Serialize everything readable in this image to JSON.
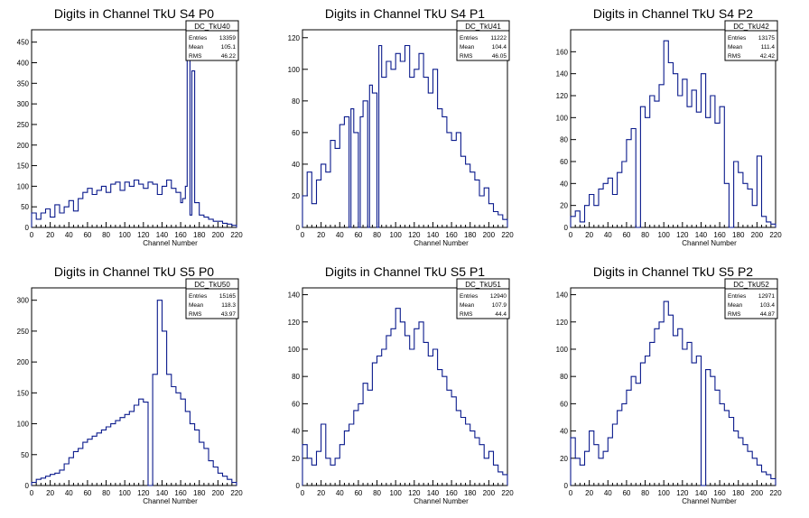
{
  "chart_data": [
    {
      "type": "histogram",
      "title": "Digits in Channel TkU S4 P0",
      "xlabel": "Channel Number",
      "ylabel": "",
      "xlim": [
        0,
        220
      ],
      "ylim": [
        0,
        480
      ],
      "yticks": [
        0,
        50,
        100,
        150,
        200,
        250,
        300,
        350,
        400,
        450
      ],
      "stats": {
        "name": "DC_TkU40",
        "entries": "13359",
        "mean": "105.1",
        "rms": "46.22"
      },
      "series": [
        {
          "name": "DC_TkU40",
          "x": [
            0,
            5,
            10,
            15,
            20,
            25,
            30,
            35,
            40,
            45,
            50,
            55,
            60,
            65,
            70,
            75,
            80,
            85,
            90,
            95,
            100,
            105,
            110,
            115,
            120,
            125,
            130,
            135,
            140,
            145,
            150,
            155,
            160,
            162,
            165,
            167,
            170,
            172,
            175,
            180,
            185,
            190,
            195,
            200,
            205,
            210,
            215,
            220
          ],
          "y": [
            35,
            20,
            35,
            45,
            25,
            55,
            35,
            50,
            65,
            40,
            70,
            85,
            95,
            80,
            90,
            100,
            85,
            105,
            110,
            90,
            110,
            100,
            115,
            105,
            95,
            110,
            105,
            80,
            100,
            115,
            95,
            85,
            60,
            70,
            100,
            460,
            30,
            380,
            60,
            30,
            25,
            20,
            15,
            15,
            10,
            8,
            5,
            3
          ]
        }
      ]
    },
    {
      "type": "histogram",
      "title": "Digits in Channel TkU S4 P1",
      "xlabel": "Channel Number",
      "ylabel": "",
      "xlim": [
        0,
        220
      ],
      "ylim": [
        0,
        125
      ],
      "yticks": [
        0,
        20,
        40,
        60,
        80,
        100,
        120
      ],
      "stats": {
        "name": "DC_TkU41",
        "entries": "11222",
        "mean": "104.4",
        "rms": "46.05"
      },
      "series": [
        {
          "name": "DC_TkU41",
          "x": [
            0,
            5,
            10,
            15,
            20,
            25,
            30,
            35,
            40,
            45,
            50,
            52,
            55,
            60,
            62,
            65,
            70,
            72,
            75,
            80,
            82,
            85,
            90,
            95,
            100,
            105,
            110,
            115,
            120,
            125,
            130,
            135,
            140,
            145,
            150,
            155,
            160,
            165,
            170,
            175,
            180,
            185,
            190,
            195,
            200,
            205,
            210,
            215,
            220
          ],
          "y": [
            20,
            35,
            15,
            30,
            40,
            35,
            55,
            50,
            65,
            70,
            0,
            75,
            60,
            0,
            70,
            80,
            0,
            90,
            85,
            0,
            115,
            95,
            105,
            100,
            110,
            105,
            115,
            95,
            100,
            110,
            95,
            85,
            100,
            75,
            70,
            60,
            55,
            60,
            45,
            40,
            35,
            30,
            20,
            25,
            15,
            10,
            8,
            5,
            5
          ]
        }
      ]
    },
    {
      "type": "histogram",
      "title": "Digits in Channel TkU S4 P2",
      "xlabel": "Channel Number",
      "ylabel": "",
      "xlim": [
        0,
        220
      ],
      "ylim": [
        0,
        180
      ],
      "yticks": [
        0,
        20,
        40,
        60,
        80,
        100,
        120,
        140,
        160
      ],
      "stats": {
        "name": "DC_TkU42",
        "entries": "13175",
        "mean": "111.4",
        "rms": "42.42"
      },
      "series": [
        {
          "name": "DC_TkU42",
          "x": [
            0,
            5,
            10,
            15,
            20,
            25,
            30,
            35,
            40,
            45,
            50,
            55,
            60,
            65,
            70,
            75,
            80,
            85,
            90,
            95,
            100,
            105,
            110,
            115,
            120,
            125,
            130,
            135,
            140,
            145,
            150,
            155,
            160,
            165,
            170,
            175,
            180,
            185,
            190,
            195,
            200,
            205,
            210,
            215,
            220
          ],
          "y": [
            10,
            15,
            5,
            20,
            30,
            20,
            35,
            40,
            45,
            30,
            50,
            60,
            80,
            90,
            0,
            110,
            100,
            120,
            115,
            130,
            170,
            150,
            140,
            120,
            135,
            110,
            125,
            105,
            140,
            100,
            120,
            95,
            110,
            40,
            0,
            60,
            50,
            40,
            35,
            20,
            65,
            10,
            5,
            3,
            2
          ]
        }
      ]
    },
    {
      "type": "histogram",
      "title": "Digits in Channel TkU S5 P0",
      "xlabel": "Channel Number",
      "ylabel": "",
      "xlim": [
        0,
        220
      ],
      "ylim": [
        0,
        320
      ],
      "yticks": [
        0,
        50,
        100,
        150,
        200,
        250,
        300
      ],
      "stats": {
        "name": "DC_TkU50",
        "entries": "15165",
        "mean": "118.3",
        "rms": "43.97"
      },
      "series": [
        {
          "name": "DC_TkU50",
          "x": [
            0,
            5,
            10,
            15,
            20,
            25,
            30,
            35,
            40,
            45,
            50,
            55,
            60,
            65,
            70,
            75,
            80,
            85,
            90,
            95,
            100,
            105,
            110,
            115,
            120,
            125,
            130,
            135,
            140,
            145,
            150,
            155,
            160,
            165,
            170,
            175,
            180,
            185,
            190,
            195,
            200,
            205,
            210,
            215,
            220
          ],
          "y": [
            5,
            10,
            12,
            15,
            18,
            20,
            25,
            35,
            45,
            55,
            60,
            70,
            75,
            80,
            85,
            90,
            95,
            100,
            105,
            110,
            115,
            120,
            130,
            140,
            135,
            0,
            180,
            300,
            250,
            180,
            160,
            150,
            140,
            120,
            100,
            90,
            70,
            60,
            40,
            30,
            20,
            15,
            10,
            5,
            3
          ]
        }
      ]
    },
    {
      "type": "histogram",
      "title": "Digits in Channel TkU S5 P1",
      "xlabel": "Channel Number",
      "ylabel": "",
      "xlim": [
        0,
        220
      ],
      "ylim": [
        0,
        145
      ],
      "yticks": [
        0,
        20,
        40,
        60,
        80,
        100,
        120,
        140
      ],
      "stats": {
        "name": "DC_TkU51",
        "entries": "12940",
        "mean": "107.9",
        "rms": "44.4"
      },
      "series": [
        {
          "name": "DC_TkU51",
          "x": [
            0,
            5,
            10,
            15,
            20,
            25,
            30,
            35,
            40,
            45,
            50,
            55,
            60,
            65,
            70,
            75,
            80,
            85,
            90,
            95,
            100,
            105,
            110,
            115,
            120,
            125,
            130,
            135,
            140,
            145,
            150,
            155,
            160,
            165,
            170,
            175,
            180,
            185,
            190,
            195,
            200,
            205,
            210,
            215,
            220
          ],
          "y": [
            30,
            20,
            15,
            25,
            45,
            20,
            15,
            20,
            30,
            40,
            45,
            55,
            60,
            75,
            70,
            90,
            95,
            100,
            110,
            115,
            130,
            120,
            110,
            100,
            115,
            120,
            105,
            95,
            100,
            85,
            80,
            70,
            65,
            55,
            50,
            45,
            40,
            35,
            30,
            20,
            25,
            15,
            10,
            8,
            5
          ]
        }
      ]
    },
    {
      "type": "histogram",
      "title": "Digits in Channel TkU S5 P2",
      "xlabel": "Channel Number",
      "ylabel": "",
      "xlim": [
        0,
        220
      ],
      "ylim": [
        0,
        145
      ],
      "yticks": [
        0,
        20,
        40,
        60,
        80,
        100,
        120,
        140
      ],
      "stats": {
        "name": "DC_TkU52",
        "entries": "12971",
        "mean": "103.4",
        "rms": "44.87"
      },
      "series": [
        {
          "name": "DC_TkU52",
          "x": [
            0,
            5,
            10,
            15,
            20,
            25,
            30,
            35,
            40,
            45,
            50,
            55,
            60,
            65,
            70,
            75,
            80,
            85,
            90,
            95,
            100,
            105,
            110,
            115,
            120,
            125,
            130,
            135,
            140,
            145,
            150,
            155,
            160,
            165,
            170,
            175,
            180,
            185,
            190,
            195,
            200,
            205,
            210,
            215,
            220
          ],
          "y": [
            35,
            20,
            15,
            25,
            40,
            30,
            20,
            25,
            35,
            45,
            55,
            60,
            70,
            80,
            75,
            90,
            95,
            105,
            115,
            120,
            135,
            125,
            110,
            115,
            100,
            105,
            90,
            95,
            0,
            85,
            80,
            70,
            60,
            55,
            50,
            40,
            35,
            30,
            25,
            20,
            15,
            10,
            8,
            5,
            3
          ]
        }
      ]
    }
  ]
}
